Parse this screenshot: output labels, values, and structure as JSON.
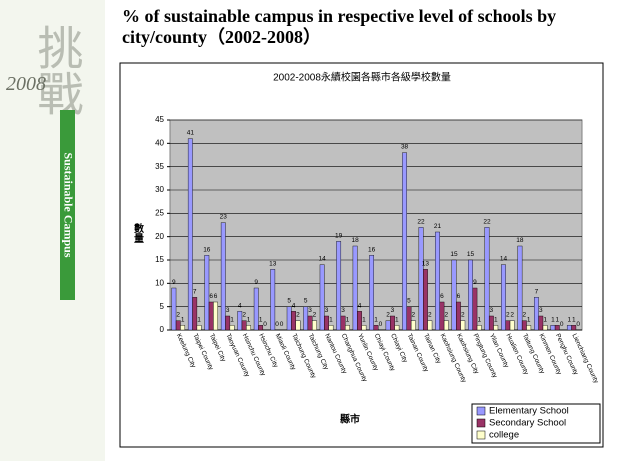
{
  "slide": {
    "logo_chars": "挑戰",
    "logo_year": "2008",
    "side_text": "Sustainable Campus",
    "title": "% of sustainable campus in respective level of schools by city/county（2002-2008）"
  },
  "chart_data": {
    "type": "bar",
    "title": "2002-2008永續校園各縣市各級學校數量",
    "y_label": "數量",
    "x_label": "縣市",
    "categories": [
      "Keelung City",
      "Taipei County",
      "Taipei City",
      "Taoyuan County",
      "Hsinchu County",
      "Hsinchu City",
      "Miaoli County",
      "Taichung County",
      "Taichung City",
      "Nantou County",
      "Changhua County",
      "Yunlin County",
      "Chiayi County",
      "Chiayi City",
      "Tainan County",
      "Tainan City",
      "Kaohsiung County",
      "Kaohsiung City",
      "Pingtung County",
      "Yilan County",
      "Hualien County",
      "Taitung County",
      "Kinmen County",
      "Penghu County",
      "Lienchiang County"
    ],
    "series": [
      {
        "name": "Elementary School",
        "color": "#9999ff",
        "values": [
          9,
          41,
          16,
          23,
          4,
          9,
          13,
          5,
          5,
          14,
          19,
          18,
          16,
          2,
          38,
          22,
          21,
          15,
          15,
          22,
          14,
          18,
          7,
          1,
          1
        ]
      },
      {
        "name": "Secondary School",
        "color": "#993366",
        "values": [
          2,
          7,
          6,
          3,
          2,
          1,
          0,
          4,
          3,
          3,
          3,
          4,
          1,
          3,
          5,
          13,
          6,
          6,
          9,
          3,
          2,
          2,
          3,
          1,
          1
        ]
      },
      {
        "name": "college",
        "color": "#ffffcc",
        "values": [
          1,
          1,
          6,
          1,
          1,
          0,
          0,
          2,
          2,
          1,
          1,
          1,
          0,
          1,
          2,
          2,
          2,
          2,
          1,
          1,
          2,
          1,
          1,
          0,
          0
        ]
      }
    ],
    "ylim": [
      0,
      45
    ],
    "yticks": [
      0,
      5,
      10,
      15,
      20,
      25,
      30,
      35,
      40,
      45
    ],
    "grid": true,
    "legend": "bottom-right"
  }
}
